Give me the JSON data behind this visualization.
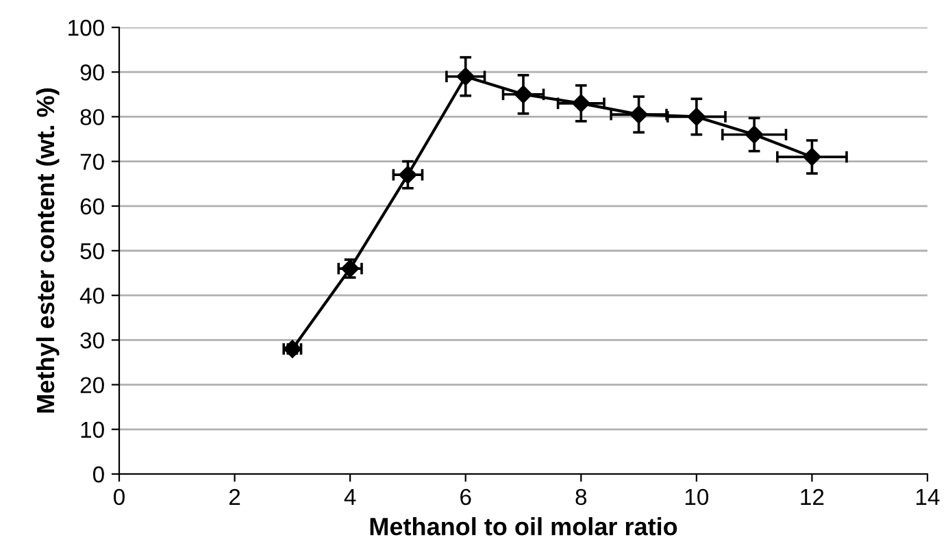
{
  "chart_data": {
    "type": "line",
    "xlabel": "Methanol to oil molar ratio",
    "ylabel": "Methyl ester content (wt. %)",
    "x": [
      3,
      4,
      5,
      6,
      7,
      8,
      9,
      10,
      11,
      12
    ],
    "series": [
      {
        "color": "#000000",
        "values": [
          28,
          46,
          67,
          89,
          85,
          83,
          80.5,
          80,
          76,
          71
        ],
        "errors": [
          1,
          2,
          3,
          4.3,
          4.3,
          4,
          4,
          4,
          3.7,
          3.7
        ],
        "xerrors": [
          0.15,
          0.2,
          0.25,
          0.33,
          0.35,
          0.4,
          0.48,
          0.5,
          0.55,
          0.6
        ]
      }
    ],
    "xlim": [
      0,
      14
    ],
    "xticks": [
      0,
      2,
      4,
      6,
      8,
      10,
      12,
      14
    ],
    "ylim": [
      0,
      100
    ],
    "yticks": [
      0,
      10,
      20,
      30,
      40,
      50,
      60,
      70,
      80,
      90,
      100
    ],
    "grid": "y",
    "marker": "diamond",
    "line_style": "solid"
  }
}
